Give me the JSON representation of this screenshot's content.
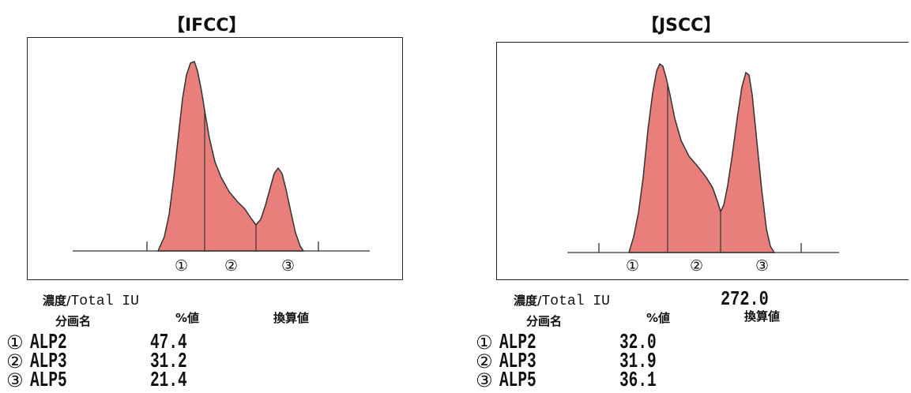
{
  "chart_data": [
    {
      "type": "area",
      "title": "【IFCC】",
      "fraction_labels": [
        "①",
        "②",
        "③"
      ],
      "concentration_label": "濃度/",
      "concentration_unit": "Total IU",
      "concentration_value": "",
      "column_headers": [
        "分画名",
        "%値",
        "換算値"
      ],
      "rows": [
        {
          "marker": "①",
          "fraction": "ALP2",
          "percent": "47.4",
          "converted": ""
        },
        {
          "marker": "②",
          "fraction": "ALP3",
          "percent": "31.2",
          "converted": ""
        },
        {
          "marker": "③",
          "fraction": "ALP5",
          "percent": "21.4",
          "converted": ""
        }
      ],
      "values": [
        47.4,
        31.2,
        21.4
      ],
      "fill_color": "#e87f7a",
      "line_color": "#333333"
    },
    {
      "type": "area",
      "title": "【JSCC】",
      "fraction_labels": [
        "①",
        "②",
        "③"
      ],
      "concentration_label": "濃度/",
      "concentration_unit": "Total IU",
      "concentration_value": "272.0",
      "column_headers": [
        "分画名",
        "%値",
        "換算値"
      ],
      "rows": [
        {
          "marker": "①",
          "fraction": "ALP2",
          "percent": "32.0",
          "converted": ""
        },
        {
          "marker": "②",
          "fraction": "ALP3",
          "percent": "31.9",
          "converted": ""
        },
        {
          "marker": "③",
          "fraction": "ALP5",
          "percent": "36.1",
          "converted": ""
        }
      ],
      "values": [
        32.0,
        31.9,
        36.1
      ],
      "fill_color": "#e87f7a",
      "line_color": "#333333"
    }
  ]
}
